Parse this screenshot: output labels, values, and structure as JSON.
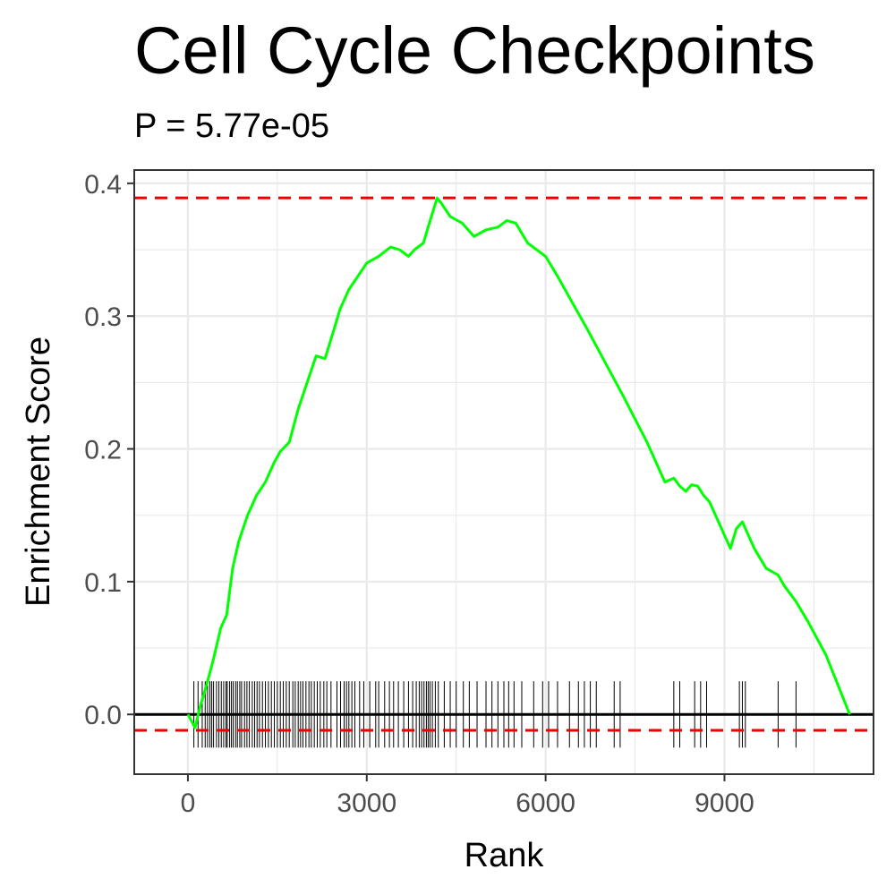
{
  "chart_data": {
    "type": "line",
    "title": "Cell Cycle Checkpoints",
    "subtitle": "P = 5.77e-05",
    "xlabel": "Rank",
    "ylabel": "Enrichment Score",
    "xlim": [
      -900,
      11500
    ],
    "ylim": [
      -0.045,
      0.41
    ],
    "x_ticks": [
      0,
      3000,
      6000,
      9000
    ],
    "x_tick_labels": [
      "0",
      "3000",
      "6000",
      "9000"
    ],
    "y_ticks": [
      0.0,
      0.1,
      0.2,
      0.3,
      0.4
    ],
    "y_tick_labels": [
      "0.0",
      "0.1",
      "0.2",
      "0.3",
      "0.4"
    ],
    "grid": true,
    "max_es_line": 0.389,
    "min_es_line": -0.012,
    "colors": {
      "curve": "#00ff00",
      "dashed": "#ee0000",
      "zero_line": "#000000",
      "ticks": "#000000",
      "grid": "#ebebeb",
      "panel_border": "#333333"
    },
    "series": [
      {
        "x": [
          0,
          120,
          200,
          300,
          420,
          550,
          650,
          750,
          850,
          1000,
          1150,
          1300,
          1450,
          1550,
          1700,
          1850,
          2000,
          2150,
          2300,
          2450,
          2550,
          2700,
          2850,
          3000,
          3200,
          3400,
          3550,
          3700,
          3800,
          3950,
          4050,
          4180,
          4250,
          4400,
          4600,
          4800,
          5000,
          5200,
          5350,
          5500,
          5700,
          5850,
          6000,
          6200,
          6450,
          6700,
          7000,
          7300,
          7700,
          8000,
          8150,
          8250,
          8350,
          8450,
          8550,
          8650,
          8750,
          8900,
          9100,
          9200,
          9300,
          9500,
          9700,
          9900,
          10000,
          10200,
          10400,
          10700,
          11100
        ],
        "y": [
          0.0,
          -0.01,
          0.005,
          0.02,
          0.04,
          0.065,
          0.075,
          0.11,
          0.13,
          0.15,
          0.165,
          0.175,
          0.19,
          0.198,
          0.205,
          0.23,
          0.25,
          0.27,
          0.268,
          0.29,
          0.305,
          0.32,
          0.33,
          0.34,
          0.345,
          0.352,
          0.35,
          0.345,
          0.35,
          0.355,
          0.37,
          0.389,
          0.385,
          0.375,
          0.37,
          0.36,
          0.365,
          0.367,
          0.372,
          0.37,
          0.355,
          0.35,
          0.345,
          0.33,
          0.31,
          0.29,
          0.265,
          0.24,
          0.205,
          0.175,
          0.178,
          0.172,
          0.168,
          0.173,
          0.172,
          0.165,
          0.16,
          0.145,
          0.125,
          0.14,
          0.145,
          0.125,
          0.11,
          0.105,
          0.097,
          0.085,
          0.07,
          0.045,
          0.0
        ]
      }
    ],
    "hit_positions": [
      100,
      170,
      240,
      290,
      330,
      370,
      400,
      430,
      480,
      520,
      560,
      600,
      640,
      660,
      700,
      730,
      760,
      800,
      830,
      870,
      900,
      950,
      990,
      1030,
      1080,
      1120,
      1160,
      1200,
      1250,
      1300,
      1350,
      1400,
      1450,
      1500,
      1550,
      1600,
      1650,
      1700,
      1760,
      1800,
      1850,
      1890,
      1930,
      1980,
      2030,
      2070,
      2120,
      2170,
      2220,
      2280,
      2330,
      2400,
      2500,
      2560,
      2620,
      2660,
      2700,
      2750,
      2800,
      2880,
      2950,
      3050,
      3150,
      3200,
      3300,
      3380,
      3450,
      3530,
      3620,
      3700,
      3770,
      3830,
      3880,
      3920,
      3960,
      4000,
      4030,
      4060,
      4100,
      4150,
      4200,
      4300,
      4400,
      4500,
      4620,
      4720,
      4850,
      5000,
      5100,
      5200,
      5300,
      5380,
      5470,
      5600,
      5800,
      5950,
      6050,
      6200,
      6400,
      6550,
      6650,
      6750,
      6850,
      7150,
      7250,
      8150,
      8250,
      8500,
      8600,
      8700,
      9250,
      9300,
      9350,
      9900,
      10200
    ]
  }
}
